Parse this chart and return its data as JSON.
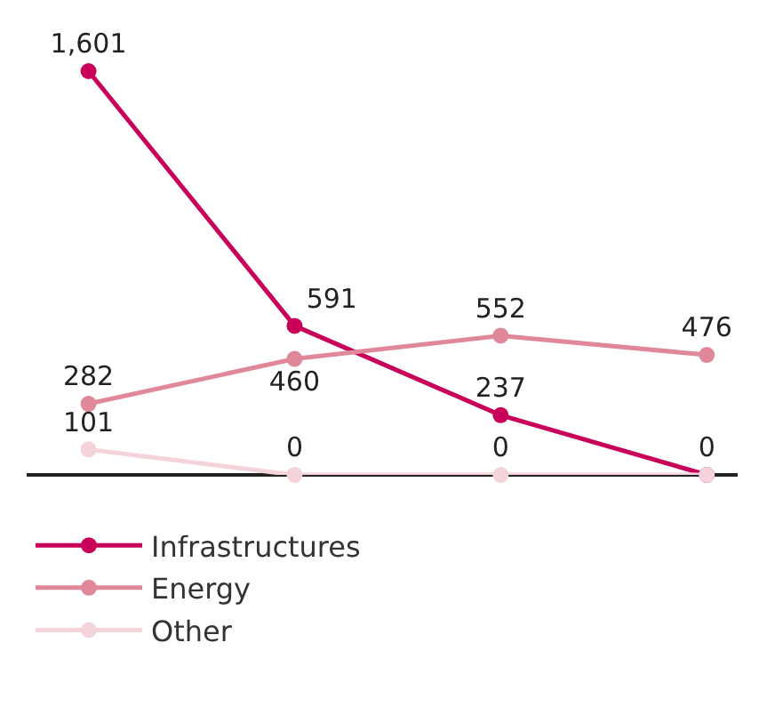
{
  "chart_data": {
    "type": "line",
    "categories": [
      null,
      null,
      null,
      null
    ],
    "marker": "circle",
    "legend": "bottom left",
    "tick_labels": false,
    "series": [
      {
        "name": "Infrastructures",
        "color": "#c8005a",
        "values": [
          1601,
          591,
          237,
          0
        ],
        "value_labels": [
          "1,601",
          "591",
          "237",
          "0"
        ]
      },
      {
        "name": "Energy",
        "color": "#e0889a",
        "values": [
          282,
          460,
          552,
          476
        ],
        "value_labels": [
          "282",
          "460",
          "552",
          "476"
        ]
      },
      {
        "name": "Other",
        "color": "#f4d4da",
        "values": [
          101,
          0,
          0,
          0
        ],
        "value_labels": [
          "101",
          "0",
          "0",
          null
        ]
      }
    ]
  }
}
